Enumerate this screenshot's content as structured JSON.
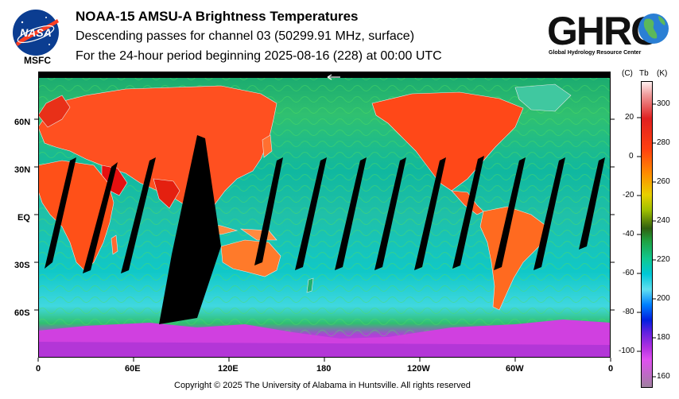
{
  "header": {
    "line1": "NOAA-15 AMSU-A Brightness Temperatures",
    "line2": "Descending passes for channel 03 (50299.91 MHz, surface)",
    "line3": "For the 24-hour period beginning 2025-08-16 (228) at 00:00 UTC"
  },
  "logos": {
    "nasa_text": "NASA",
    "msfc_text": "MSFC",
    "ghrc_text": "GHRC",
    "ghrc_subtitle": "Global Hydrology Resource Center"
  },
  "map": {
    "lat_labels": [
      "60N",
      "30N",
      "EQ",
      "30S",
      "60S"
    ],
    "lon_labels": [
      "0",
      "60E",
      "120E",
      "180",
      "120W",
      "60W",
      "0"
    ],
    "colors": {
      "cold_ocean": "#00c8c8",
      "mid_green": "#20b050",
      "warm_land": "#ff5a1e",
      "very_warm": "#e60000",
      "ice": "#d040e0",
      "swath_gap": "#000000"
    }
  },
  "colorbar": {
    "unit_c": "(C)",
    "unit_tb": "Tb",
    "unit_k": "(K)",
    "celsius_ticks": [
      "20",
      "0",
      "-20",
      "-40",
      "-60",
      "-80",
      "-100"
    ],
    "kelvin_ticks": [
      "300",
      "280",
      "260",
      "240",
      "220",
      "200",
      "180",
      "160"
    ]
  },
  "footer": {
    "copyright": "Copyright © 2025 The University of Alabama in Huntsville.  All rights reserved"
  }
}
